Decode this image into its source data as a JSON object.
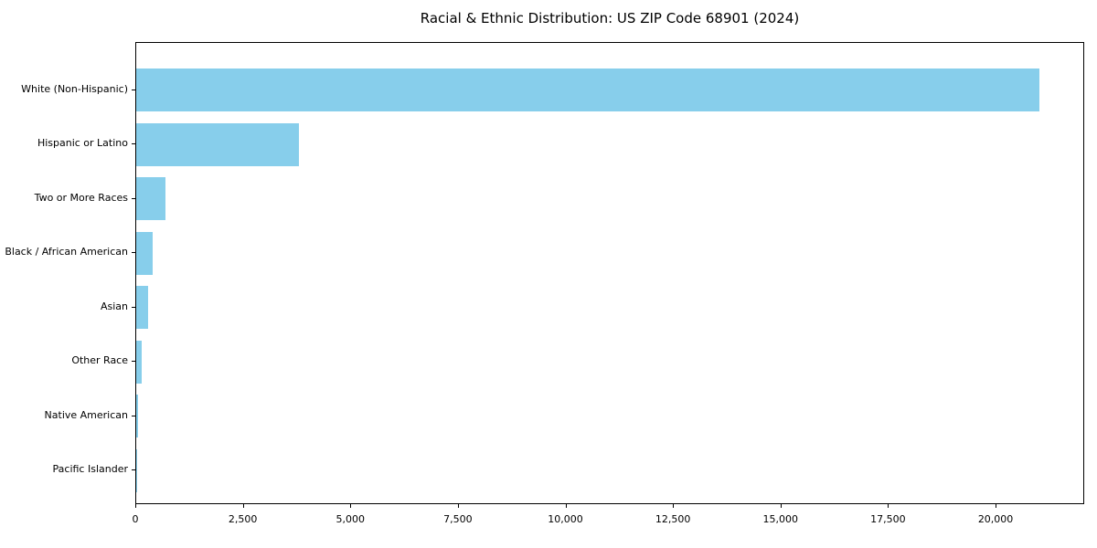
{
  "chart_data": {
    "type": "bar",
    "orientation": "horizontal",
    "title": "Racial & Ethnic Distribution: US ZIP Code 68901 (2024)",
    "categories": [
      "White (Non-Hispanic)",
      "Hispanic or Latino",
      "Two or More Races",
      "Black / African American",
      "Asian",
      "Other Race",
      "Native American",
      "Pacific Islander"
    ],
    "values": [
      21000,
      3790,
      675,
      375,
      285,
      120,
      45,
      10
    ],
    "bar_color": "#87CEEB",
    "xlabel": "",
    "ylabel": "",
    "xlim": [
      0,
      22060
    ],
    "x_ticks": [
      0,
      2500,
      5000,
      7500,
      10000,
      12500,
      15000,
      17500,
      20000
    ],
    "x_tick_labels": [
      "0",
      "2,500",
      "5,000",
      "7,500",
      "10,000",
      "12,500",
      "15,000",
      "17,500",
      "20,000"
    ],
    "grid": false,
    "legend": null,
    "plot_border_color": "#000000",
    "background_color": "#ffffff"
  }
}
